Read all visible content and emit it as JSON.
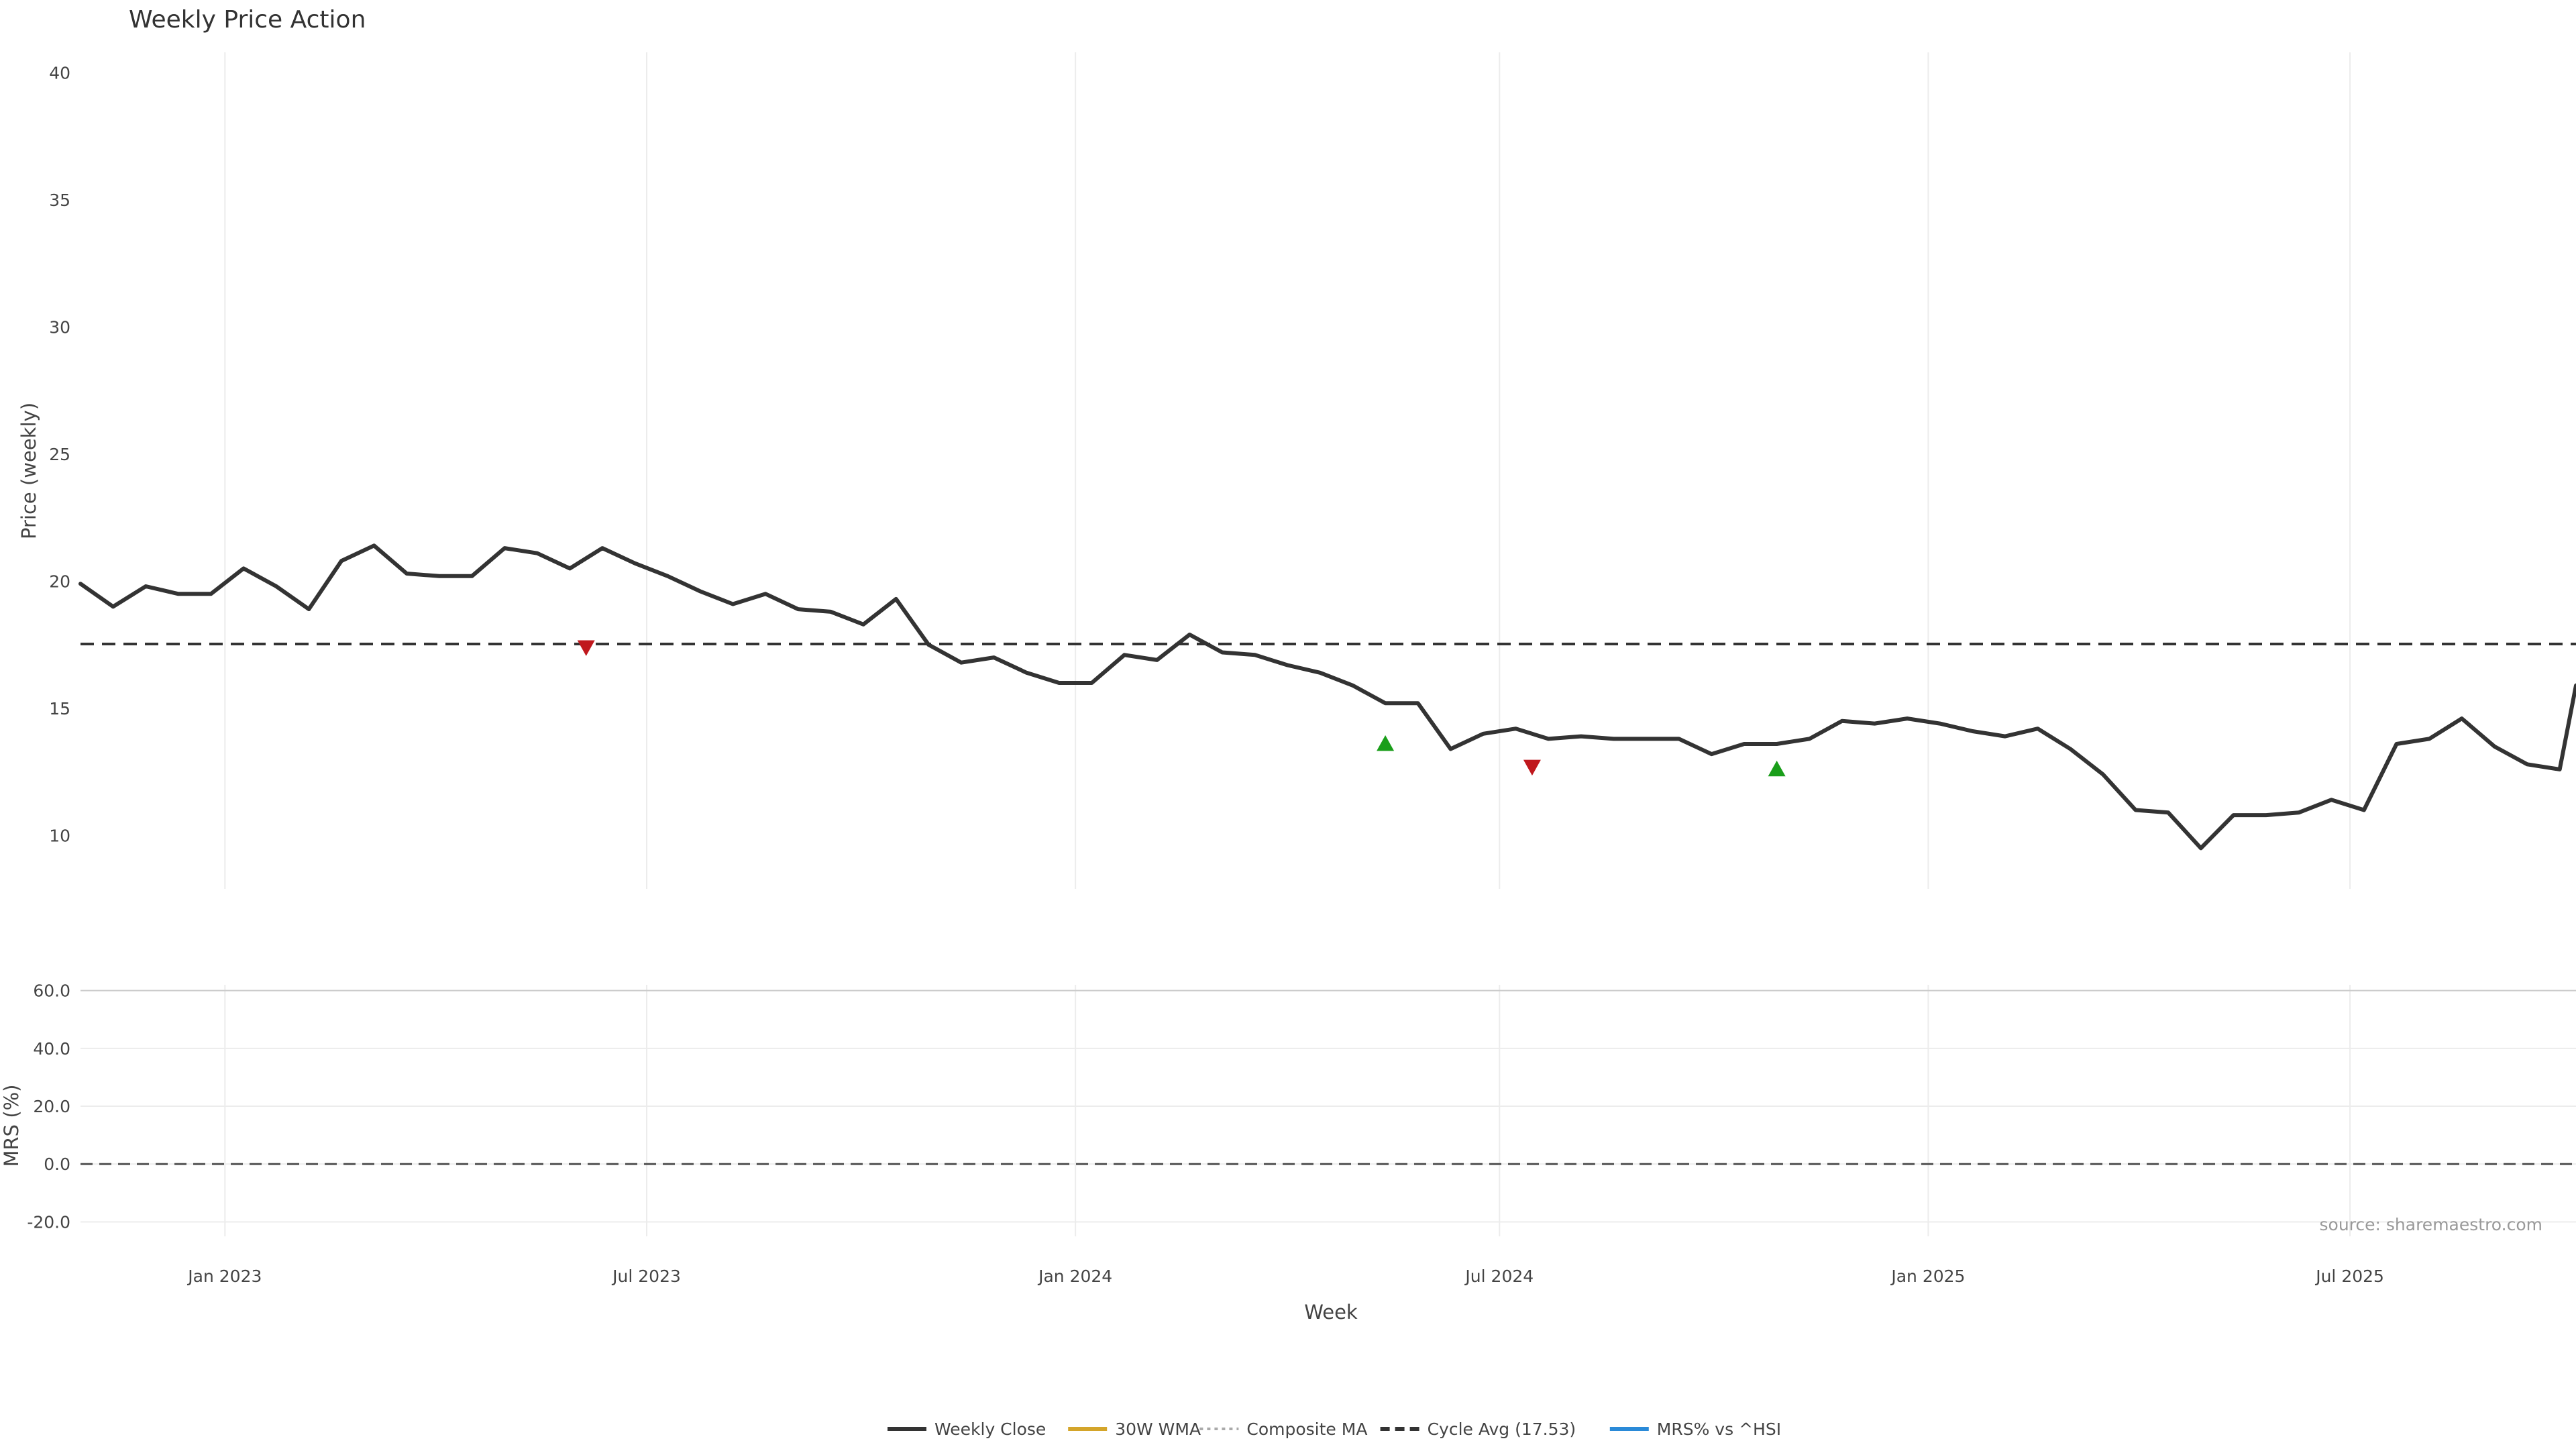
{
  "chart_data": [
    {
      "type": "line",
      "title": "Weekly Price Action",
      "ylabel": "Price (weekly)",
      "ylim": [
        7.9,
        40.8
      ],
      "yticks": [
        10,
        15,
        20,
        25,
        30,
        35,
        40
      ],
      "xlim": [
        "2022-10-31",
        "2025-10-06"
      ],
      "grid": true,
      "series": [
        {
          "name": "Weekly Close",
          "color": "#333333",
          "style": "solid",
          "points": [
            [
              "2022-10-31",
              19.9
            ],
            [
              "2022-11-14",
              19.0
            ],
            [
              "2022-11-28",
              19.8
            ],
            [
              "2022-12-12",
              19.5
            ],
            [
              "2022-12-26",
              19.5
            ],
            [
              "2023-01-09",
              20.5
            ],
            [
              "2023-01-23",
              19.8
            ],
            [
              "2023-02-06",
              18.9
            ],
            [
              "2023-02-20",
              20.8
            ],
            [
              "2023-03-06",
              21.4
            ],
            [
              "2023-03-20",
              20.3
            ],
            [
              "2023-04-03",
              20.2
            ],
            [
              "2023-04-17",
              20.2
            ],
            [
              "2023-05-01",
              21.3
            ],
            [
              "2023-05-15",
              21.1
            ],
            [
              "2023-05-29",
              20.5
            ],
            [
              "2023-06-12",
              21.3
            ],
            [
              "2023-06-26",
              20.7
            ],
            [
              "2023-07-10",
              20.2
            ],
            [
              "2023-07-24",
              19.6
            ],
            [
              "2023-08-07",
              19.1
            ],
            [
              "2023-08-21",
              19.5
            ],
            [
              "2023-09-04",
              18.9
            ],
            [
              "2023-09-18",
              18.8
            ],
            [
              "2023-10-02",
              18.3
            ],
            [
              "2023-10-16",
              19.3
            ],
            [
              "2023-10-30",
              17.5
            ],
            [
              "2023-11-13",
              16.8
            ],
            [
              "2023-11-27",
              17.0
            ],
            [
              "2023-12-11",
              16.4
            ],
            [
              "2023-12-25",
              16.0
            ],
            [
              "2024-01-08",
              16.0
            ],
            [
              "2024-01-22",
              17.1
            ],
            [
              "2024-02-05",
              16.9
            ],
            [
              "2024-02-19",
              17.9
            ],
            [
              "2024-03-04",
              17.2
            ],
            [
              "2024-03-18",
              17.1
            ],
            [
              "2024-04-01",
              16.7
            ],
            [
              "2024-04-15",
              16.4
            ],
            [
              "2024-04-29",
              15.9
            ],
            [
              "2024-05-13",
              15.2
            ],
            [
              "2024-05-27",
              15.2
            ],
            [
              "2024-06-10",
              13.4
            ],
            [
              "2024-06-24",
              14.0
            ],
            [
              "2024-07-08",
              14.2
            ],
            [
              "2024-07-22",
              13.8
            ],
            [
              "2024-08-05",
              13.9
            ],
            [
              "2024-08-19",
              13.8
            ],
            [
              "2024-09-02",
              13.8
            ],
            [
              "2024-09-16",
              13.8
            ],
            [
              "2024-09-30",
              13.2
            ],
            [
              "2024-10-14",
              13.6
            ],
            [
              "2024-10-28",
              13.6
            ],
            [
              "2024-11-11",
              13.8
            ],
            [
              "2024-11-25",
              14.5
            ],
            [
              "2024-12-09",
              14.4
            ],
            [
              "2024-12-23",
              14.6
            ],
            [
              "2025-01-06",
              14.4
            ],
            [
              "2025-01-20",
              14.1
            ],
            [
              "2025-02-03",
              13.9
            ],
            [
              "2025-02-17",
              14.2
            ],
            [
              "2025-03-03",
              13.4
            ],
            [
              "2025-03-17",
              12.4
            ],
            [
              "2025-03-31",
              11.0
            ],
            [
              "2025-04-14",
              10.9
            ],
            [
              "2025-04-28",
              9.5
            ],
            [
              "2025-05-12",
              10.8
            ],
            [
              "2025-05-26",
              10.8
            ],
            [
              "2025-06-09",
              10.9
            ],
            [
              "2025-06-23",
              11.4
            ],
            [
              "2025-07-07",
              11.0
            ],
            [
              "2025-07-21",
              13.6
            ],
            [
              "2025-08-04",
              13.8
            ],
            [
              "2025-08-18",
              14.6
            ],
            [
              "2025-09-01",
              13.5
            ],
            [
              "2025-09-15",
              12.8
            ],
            [
              "2025-09-29",
              12.6
            ],
            [
              "2025-10-06",
              15.9
            ]
          ]
        },
        {
          "name": "30W WMA",
          "color": "#d4a52a",
          "style": "solid",
          "points": []
        },
        {
          "name": "Composite MA",
          "color": "#aaaaaa",
          "style": "dotted",
          "points": []
        }
      ],
      "reference_line": {
        "name": "Cycle Avg (17.53)",
        "value": 17.53,
        "color": "#333333",
        "style": "dashed"
      },
      "markers": [
        {
          "kind": "sell",
          "color": "#c0181d",
          "date": "2023-06-05",
          "y": 17.4
        },
        {
          "kind": "buy",
          "color": "#1a9e1a",
          "date": "2024-05-13",
          "y": 13.6
        },
        {
          "kind": "sell",
          "color": "#c0181d",
          "date": "2024-07-15",
          "y": 12.7
        },
        {
          "kind": "buy",
          "color": "#1a9e1a",
          "date": "2024-10-28",
          "y": 12.6
        }
      ]
    },
    {
      "type": "line",
      "title": "",
      "xlabel": "Week",
      "ylabel": "MRS (%)",
      "ylim": [
        -25,
        62
      ],
      "yticks": [
        "-20.0",
        "0.0",
        "20.0",
        "40.0",
        "60.0"
      ],
      "xlim": [
        "2022-10-31",
        "2025-10-06"
      ],
      "xticks": [
        {
          "date": "2023-01-01",
          "label": "Jan 2023"
        },
        {
          "date": "2023-07-01",
          "label": "Jul 2023"
        },
        {
          "date": "2024-01-01",
          "label": "Jan 2024"
        },
        {
          "date": "2024-07-01",
          "label": "Jul 2024"
        },
        {
          "date": "2025-01-01",
          "label": "Jan 2025"
        },
        {
          "date": "2025-07-01",
          "label": "Jul 2025"
        }
      ],
      "grid": true,
      "zero_line": {
        "value": 0,
        "style": "dashed",
        "color": "#555555"
      },
      "series": [
        {
          "name": "MRS% vs ^HSI",
          "color": "#2a8ad8",
          "style": "solid",
          "points": []
        }
      ],
      "annotation": "source: sharemaestro.com"
    }
  ],
  "legend": {
    "placement": "bottom-center",
    "items": [
      {
        "label": "Weekly Close",
        "color": "#333333",
        "style": "solid"
      },
      {
        "label": "30W WMA",
        "color": "#d4a52a",
        "style": "solid"
      },
      {
        "label": "Composite MA",
        "color": "#aaaaaa",
        "style": "dotted"
      },
      {
        "label": "Cycle Avg (17.53)",
        "color": "#333333",
        "style": "dashed"
      },
      {
        "label": "MRS% vs ^HSI",
        "color": "#2a8ad8",
        "style": "solid"
      }
    ]
  }
}
